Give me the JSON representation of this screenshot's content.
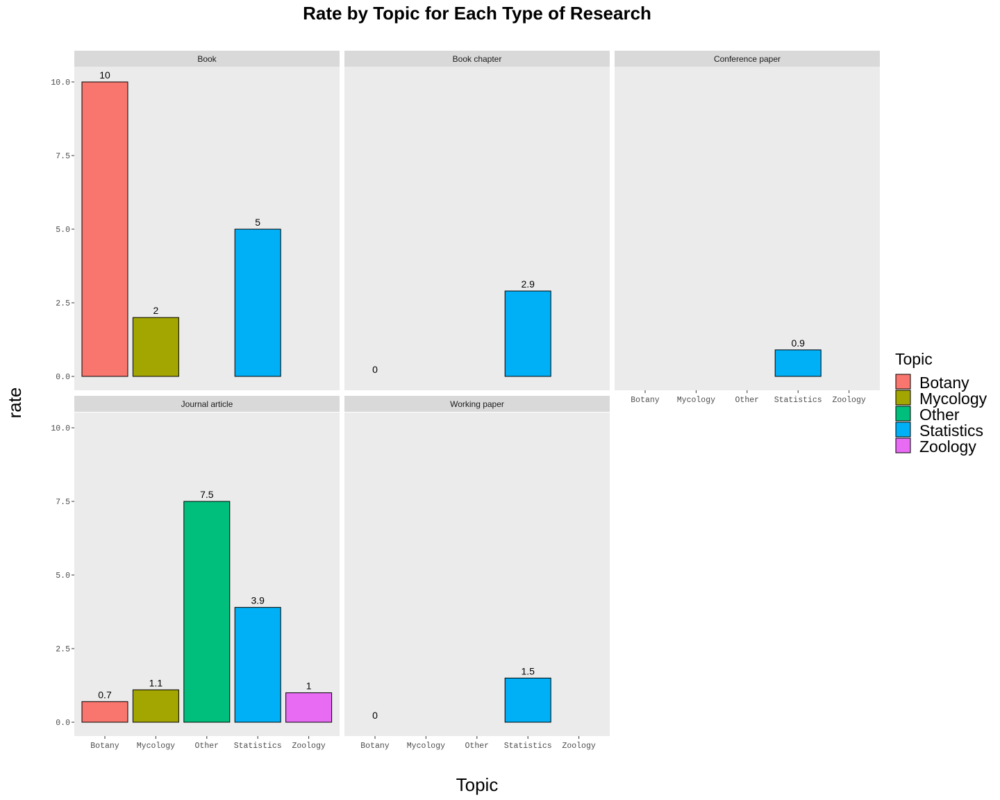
{
  "chart_data": {
    "type": "bar",
    "title": "Rate by Topic for Each Type of Research",
    "xlabel": "Topic",
    "ylabel": "rate",
    "ylim": [
      0,
      10.5
    ],
    "y_ticks": [
      "0.0",
      "2.5",
      "5.0",
      "7.5",
      "10.0"
    ],
    "y_tick_values": [
      0,
      2.5,
      5,
      7.5,
      10
    ],
    "categories": [
      "Botany",
      "Mycology",
      "Other",
      "Statistics",
      "Zoology"
    ],
    "colors": {
      "Botany": "#F8766D",
      "Mycology": "#A3A500",
      "Other": "#00BF7D",
      "Statistics": "#00B0F6",
      "Zoology": "#E76BF3"
    },
    "legend": {
      "title": "Topic",
      "position": "right",
      "entries": [
        "Botany",
        "Mycology",
        "Other",
        "Statistics",
        "Zoology"
      ]
    },
    "facets": [
      {
        "name": "Book",
        "bars": [
          {
            "topic": "Botany",
            "value": 10,
            "label": "10"
          },
          {
            "topic": "Mycology",
            "value": 2,
            "label": "2"
          },
          {
            "topic": "Statistics",
            "value": 5,
            "label": "5"
          }
        ]
      },
      {
        "name": "Book chapter",
        "bars": [
          {
            "topic": "Botany",
            "value": 0,
            "label": "0"
          },
          {
            "topic": "Statistics",
            "value": 2.9,
            "label": "2.9"
          }
        ]
      },
      {
        "name": "Conference paper",
        "bars": [
          {
            "topic": "Statistics",
            "value": 0.9,
            "label": "0.9"
          }
        ]
      },
      {
        "name": "Journal article",
        "bars": [
          {
            "topic": "Botany",
            "value": 0.7,
            "label": "0.7"
          },
          {
            "topic": "Mycology",
            "value": 1.1,
            "label": "1.1"
          },
          {
            "topic": "Other",
            "value": 7.5,
            "label": "7.5"
          },
          {
            "topic": "Statistics",
            "value": 3.9,
            "label": "3.9"
          },
          {
            "topic": "Zoology",
            "value": 1,
            "label": "1"
          }
        ]
      },
      {
        "name": "Working paper",
        "bars": [
          {
            "topic": "Botany",
            "value": 0,
            "label": "0"
          },
          {
            "topic": "Statistics",
            "value": 1.5,
            "label": "1.5"
          }
        ]
      }
    ]
  }
}
